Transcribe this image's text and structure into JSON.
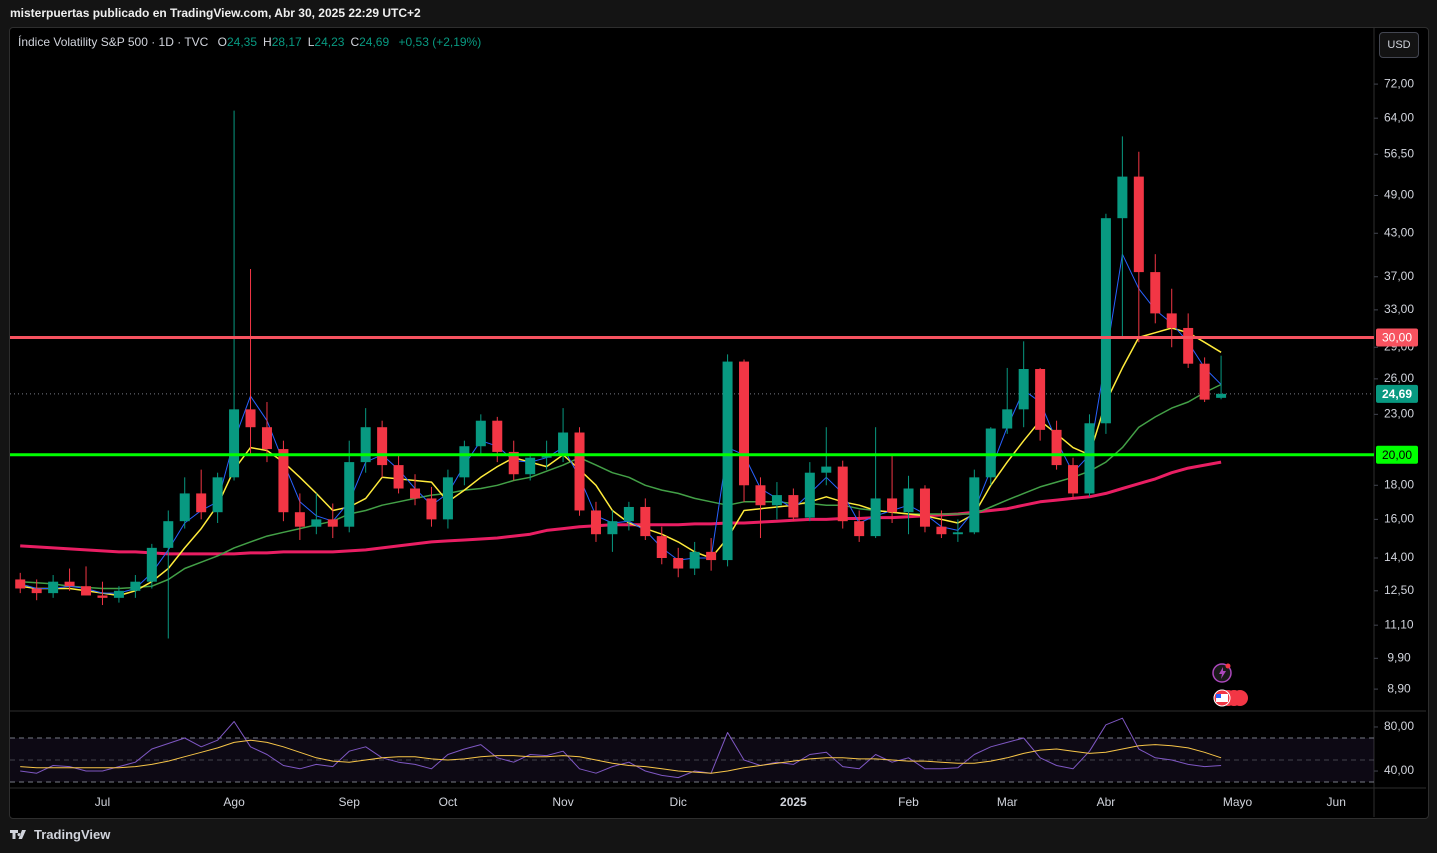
{
  "header": {
    "byline": "misterpuertas publicado en TradingView.com, Abr 30, 2025 22:29 UTC+2",
    "symbol": "Índice Volatility S&P 500 · 1D · TVC",
    "ohlc": [
      {
        "key": "O",
        "value": "24,35"
      },
      {
        "key": "H",
        "value": "28,17"
      },
      {
        "key": "L",
        "value": "24,23"
      },
      {
        "key": "C",
        "value": "24,69"
      }
    ],
    "change": "+0,53 (+2,19%)"
  },
  "currency_button": "USD",
  "footer_logo": "TradingView",
  "chart_data": [
    {
      "type": "candlestick",
      "log_scale": true,
      "up_color": "#089981",
      "down_color": "#f23645",
      "categories": [
        null,
        null,
        null,
        null,
        null,
        "Jul",
        null,
        null,
        null,
        null,
        null,
        null,
        null,
        "Ago",
        null,
        null,
        null,
        null,
        null,
        null,
        "Sep",
        null,
        null,
        null,
        null,
        null,
        "Oct",
        null,
        null,
        null,
        null,
        null,
        null,
        "Nov",
        null,
        null,
        null,
        null,
        null,
        null,
        "Dic",
        null,
        null,
        null,
        null,
        null,
        null,
        "2025",
        null,
        null,
        null,
        null,
        null,
        null,
        "Feb",
        null,
        null,
        null,
        null,
        null,
        "Mar",
        null,
        null,
        null,
        null,
        null,
        "Abr",
        null,
        null,
        null,
        null,
        null,
        null,
        null,
        "Mayo",
        null,
        null,
        null,
        null,
        null,
        "Jun"
      ],
      "open": [
        13.0,
        12.6,
        12.4,
        12.9,
        12.7,
        12.3,
        12.2,
        12.5,
        12.9,
        14.5,
        15.9,
        17.5,
        16.4,
        18.5,
        23.4,
        22.0,
        20.4,
        16.4,
        15.6,
        16.0,
        15.6,
        19.5,
        22.0,
        19.3,
        17.8,
        17.2,
        16.0,
        18.5,
        20.6,
        22.5,
        20.2,
        18.7,
        19.8,
        20.0,
        21.6,
        16.5,
        15.2,
        15.9,
        16.7,
        15.1,
        14.0,
        13.5,
        14.3,
        13.9,
        27.6,
        18.0,
        16.8,
        17.4,
        16.1,
        18.8,
        19.2,
        15.9,
        15.1,
        17.2,
        16.4,
        17.8,
        15.6,
        15.2,
        15.3,
        18.5,
        21.9,
        23.4,
        26.9,
        21.8,
        19.3,
        17.5,
        22.3,
        45.3,
        52.3,
        37.6,
        32.6,
        31.0,
        27.4,
        24.35,
        null,
        null,
        null,
        null,
        null,
        null,
        null
      ],
      "high": [
        13.3,
        13.0,
        13.2,
        13.5,
        13.6,
        12.9,
        12.7,
        13.2,
        14.7,
        16.5,
        18.5,
        19.0,
        18.8,
        65.7,
        38.0,
        24.0,
        21.0,
        17.5,
        17.5,
        16.9,
        21.0,
        23.5,
        22.5,
        20.0,
        18.7,
        17.9,
        19.0,
        21.0,
        23.0,
        22.8,
        21.0,
        20.1,
        21.0,
        23.5,
        22.0,
        17.0,
        16.5,
        17.0,
        17.2,
        15.6,
        14.5,
        14.8,
        15.0,
        28.3,
        27.8,
        18.5,
        18.2,
        17.8,
        19.5,
        22.0,
        19.6,
        16.5,
        22.0,
        20.0,
        18.6,
        18.0,
        16.5,
        16.0,
        19.0,
        22.0,
        27.0,
        29.6,
        27.0,
        22.5,
        19.8,
        23.0,
        46.0,
        60.1,
        57.0,
        40.0,
        35.5,
        32.6,
        28.0,
        28.17,
        null,
        null,
        null,
        null,
        null,
        null,
        null
      ],
      "low": [
        12.4,
        12.1,
        12.2,
        12.5,
        12.3,
        11.9,
        12.0,
        12.2,
        12.6,
        10.6,
        15.5,
        16.0,
        15.8,
        18.3,
        20.0,
        19.5,
        15.9,
        14.9,
        15.2,
        15.0,
        15.3,
        18.8,
        18.5,
        17.5,
        16.8,
        15.6,
        15.5,
        18.0,
        20.0,
        19.5,
        18.3,
        18.3,
        19.0,
        19.5,
        16.2,
        14.8,
        14.3,
        15.4,
        14.9,
        13.7,
        13.1,
        13.2,
        13.4,
        13.6,
        17.0,
        15.0,
        16.0,
        15.9,
        15.9,
        18.0,
        15.5,
        14.8,
        15.0,
        15.8,
        15.2,
        15.3,
        15.0,
        14.8,
        15.2,
        18.0,
        21.5,
        22.0,
        21.0,
        19.0,
        17.2,
        17.3,
        21.5,
        30.0,
        29.5,
        31.5,
        29.0,
        27.0,
        24.0,
        24.23,
        null,
        null,
        null,
        null,
        null,
        null,
        null
      ],
      "close": [
        12.6,
        12.4,
        12.9,
        12.7,
        12.3,
        12.2,
        12.5,
        12.9,
        14.5,
        15.9,
        17.5,
        16.4,
        18.5,
        23.4,
        22.0,
        20.4,
        16.4,
        15.6,
        16.0,
        15.6,
        19.5,
        22.0,
        19.3,
        17.8,
        17.2,
        16.0,
        18.5,
        20.6,
        22.5,
        20.2,
        18.7,
        19.8,
        20.0,
        21.6,
        16.5,
        15.2,
        15.9,
        16.7,
        15.1,
        14.0,
        13.5,
        14.3,
        13.9,
        27.6,
        18.0,
        16.8,
        17.4,
        16.1,
        18.8,
        19.2,
        15.9,
        15.1,
        17.2,
        16.4,
        17.8,
        15.6,
        15.2,
        15.3,
        18.5,
        21.9,
        23.4,
        26.9,
        21.8,
        19.3,
        17.5,
        22.3,
        45.3,
        52.3,
        37.6,
        32.6,
        31.0,
        27.4,
        24.2,
        24.69,
        null,
        null,
        null,
        null,
        null,
        null,
        null
      ],
      "series": [
        {
          "color": "#e91e63",
          "width": 3,
          "values": [
            14.6,
            14.55,
            14.5,
            14.45,
            14.4,
            14.35,
            14.3,
            14.3,
            14.25,
            14.2,
            14.2,
            14.2,
            14.2,
            14.2,
            14.25,
            14.25,
            14.3,
            14.3,
            14.3,
            14.3,
            14.35,
            14.4,
            14.5,
            14.6,
            14.7,
            14.8,
            14.85,
            14.9,
            14.95,
            15.0,
            15.1,
            15.2,
            15.4,
            15.5,
            15.6,
            15.65,
            15.7,
            15.7,
            15.7,
            15.7,
            15.7,
            15.75,
            15.75,
            15.8,
            15.8,
            15.85,
            15.9,
            15.95,
            16.0,
            16.0,
            16.05,
            16.05,
            16.1,
            16.1,
            16.15,
            16.2,
            16.25,
            16.3,
            16.4,
            16.5,
            16.6,
            16.8,
            17.0,
            17.1,
            17.2,
            17.3,
            17.5,
            17.8,
            18.1,
            18.4,
            18.8,
            19.1,
            19.3,
            19.5,
            null,
            null,
            null,
            null,
            null,
            null,
            null
          ]
        },
        {
          "color": "#43a047",
          "width": 1.5,
          "values": [
            12.9,
            12.85,
            12.8,
            12.7,
            12.65,
            12.6,
            12.6,
            12.65,
            12.7,
            13.0,
            13.5,
            13.8,
            14.1,
            14.5,
            14.8,
            15.1,
            15.3,
            15.5,
            15.7,
            15.9,
            16.3,
            16.5,
            16.8,
            17.0,
            17.2,
            17.4,
            17.5,
            17.7,
            17.8,
            18.0,
            18.3,
            18.5,
            18.9,
            19.3,
            19.8,
            19.3,
            18.8,
            18.5,
            18.0,
            17.7,
            17.5,
            17.2,
            17.0,
            16.8,
            17.0,
            17.0,
            17.0,
            16.9,
            16.9,
            16.8,
            16.8,
            16.6,
            16.5,
            16.4,
            16.3,
            16.3,
            16.3,
            16.3,
            16.3,
            16.7,
            17.1,
            17.5,
            17.9,
            18.2,
            18.5,
            18.9,
            19.5,
            20.5,
            22.0,
            22.8,
            23.5,
            24.0,
            24.8,
            25.5,
            null,
            null,
            null,
            null,
            null,
            null,
            null
          ]
        },
        {
          "color": "#ffeb3b",
          "width": 1.5,
          "values": [
            12.7,
            12.6,
            12.6,
            12.6,
            12.5,
            12.4,
            12.3,
            12.5,
            12.9,
            13.5,
            14.5,
            15.5,
            16.8,
            19.0,
            20.5,
            20.3,
            19.5,
            18.5,
            17.5,
            16.5,
            16.7,
            17.2,
            18.5,
            18.4,
            18.3,
            18.2,
            17.0,
            17.7,
            18.5,
            19.2,
            19.8,
            19.5,
            19.2,
            20.0,
            19.0,
            18.0,
            16.5,
            15.8,
            15.5,
            15.2,
            14.8,
            14.3,
            14.0,
            15.0,
            16.5,
            16.6,
            16.7,
            16.8,
            17.0,
            17.3,
            17.0,
            16.8,
            16.5,
            16.4,
            16.3,
            16.2,
            16.0,
            15.8,
            16.3,
            18.0,
            19.5,
            21.0,
            22.5,
            21.5,
            20.5,
            20.0,
            24.0,
            27.0,
            30.0,
            30.5,
            31.0,
            30.5,
            29.5,
            28.5,
            null,
            null,
            null,
            null,
            null,
            null,
            null
          ]
        },
        {
          "color": "#2962ff",
          "width": 1,
          "values": [
            12.8,
            12.6,
            12.6,
            12.7,
            12.6,
            12.4,
            12.4,
            12.6,
            13.3,
            14.4,
            15.8,
            16.5,
            17.0,
            21.0,
            24.5,
            22.5,
            19.5,
            17.0,
            16.2,
            15.9,
            17.0,
            19.5,
            20.0,
            19.0,
            17.8,
            16.8,
            17.5,
            19.3,
            21.0,
            20.6,
            19.6,
            19.5,
            19.8,
            20.5,
            18.5,
            16.2,
            15.8,
            15.9,
            15.4,
            14.5,
            13.9,
            14.0,
            14.0,
            20.5,
            20.0,
            17.8,
            17.2,
            16.6,
            17.5,
            18.5,
            17.5,
            15.8,
            16.2,
            16.5,
            16.8,
            16.3,
            15.6,
            15.4,
            16.5,
            19.0,
            22.0,
            25.0,
            24.0,
            21.0,
            18.8,
            20.0,
            28.0,
            40.0,
            35.5,
            33.0,
            31.5,
            29.5,
            27.0,
            25.5,
            null,
            null,
            null,
            null,
            null,
            null,
            null
          ]
        }
      ],
      "hlines": [
        {
          "value": 30,
          "label": "30,00",
          "color": "#f7525f"
        },
        {
          "value": 20,
          "label": "20,00",
          "color": "#00ff00"
        }
      ],
      "last_price": {
        "value": 24.69,
        "label": "24,69",
        "color": "#089981"
      },
      "ylim": [
        8.28,
        87.4
      ],
      "yticks": [
        {
          "value": 72,
          "label": "72,00"
        },
        {
          "value": 64,
          "label": "64,00"
        },
        {
          "value": 56.5,
          "label": "56,50"
        },
        {
          "value": 49,
          "label": "49,00"
        },
        {
          "value": 43,
          "label": "43,00"
        },
        {
          "value": 37,
          "label": "37,00"
        },
        {
          "value": 33,
          "label": "33,00"
        },
        {
          "value": 29,
          "label": "29,00"
        },
        {
          "value": 26,
          "label": "26,00"
        },
        {
          "value": 23,
          "label": "23,00"
        },
        {
          "value": 18,
          "label": "18,00"
        },
        {
          "value": 16,
          "label": "16,00"
        },
        {
          "value": 14,
          "label": "14,00"
        },
        {
          "value": 12.5,
          "label": "12,50"
        },
        {
          "value": 11.1,
          "label": "11,10"
        },
        {
          "value": 9.9,
          "label": "9,90"
        },
        {
          "value": 8.9,
          "label": "8,90"
        }
      ]
    },
    {
      "type": "line",
      "band": [
        30,
        70
      ],
      "midline": 50,
      "band_color": "#7e57c2",
      "series": [
        {
          "color": "#7e57c2",
          "width": 1,
          "values": [
            40,
            38,
            45,
            44,
            40,
            40,
            44,
            48,
            60,
            65,
            70,
            62,
            68,
            85,
            62,
            55,
            45,
            42,
            46,
            44,
            58,
            62,
            52,
            48,
            46,
            42,
            55,
            60,
            64,
            52,
            48,
            55,
            54,
            58,
            42,
            38,
            44,
            48,
            40,
            36,
            34,
            40,
            38,
            75,
            50,
            45,
            48,
            46,
            55,
            57,
            44,
            42,
            55,
            48,
            52,
            42,
            42,
            43,
            55,
            62,
            66,
            70,
            52,
            45,
            42,
            58,
            82,
            88,
            60,
            52,
            50,
            46,
            44,
            45,
            null,
            null,
            null,
            null,
            null,
            null,
            null
          ]
        },
        {
          "color": "#f7c548",
          "width": 1,
          "values": [
            44,
            43,
            43,
            43,
            43,
            43,
            43,
            44,
            46,
            49,
            53,
            57,
            61,
            66,
            68,
            66,
            62,
            57,
            52,
            49,
            48,
            50,
            52,
            53,
            53,
            51,
            50,
            51,
            53,
            54,
            54,
            53,
            53,
            54,
            53,
            50,
            47,
            45,
            44,
            42,
            40,
            39,
            38,
            40,
            43,
            45,
            47,
            49,
            51,
            52,
            52,
            51,
            51,
            50,
            49,
            49,
            48,
            47,
            47,
            49,
            52,
            56,
            59,
            60,
            58,
            56,
            57,
            60,
            63,
            64,
            63,
            61,
            57,
            52,
            null,
            null,
            null,
            null,
            null,
            null,
            null
          ]
        }
      ],
      "ylim": [
        25.5,
        93.6
      ],
      "yticks": [
        {
          "value": 80,
          "label": "80,00"
        },
        {
          "value": 40,
          "label": "40,00"
        }
      ]
    }
  ]
}
